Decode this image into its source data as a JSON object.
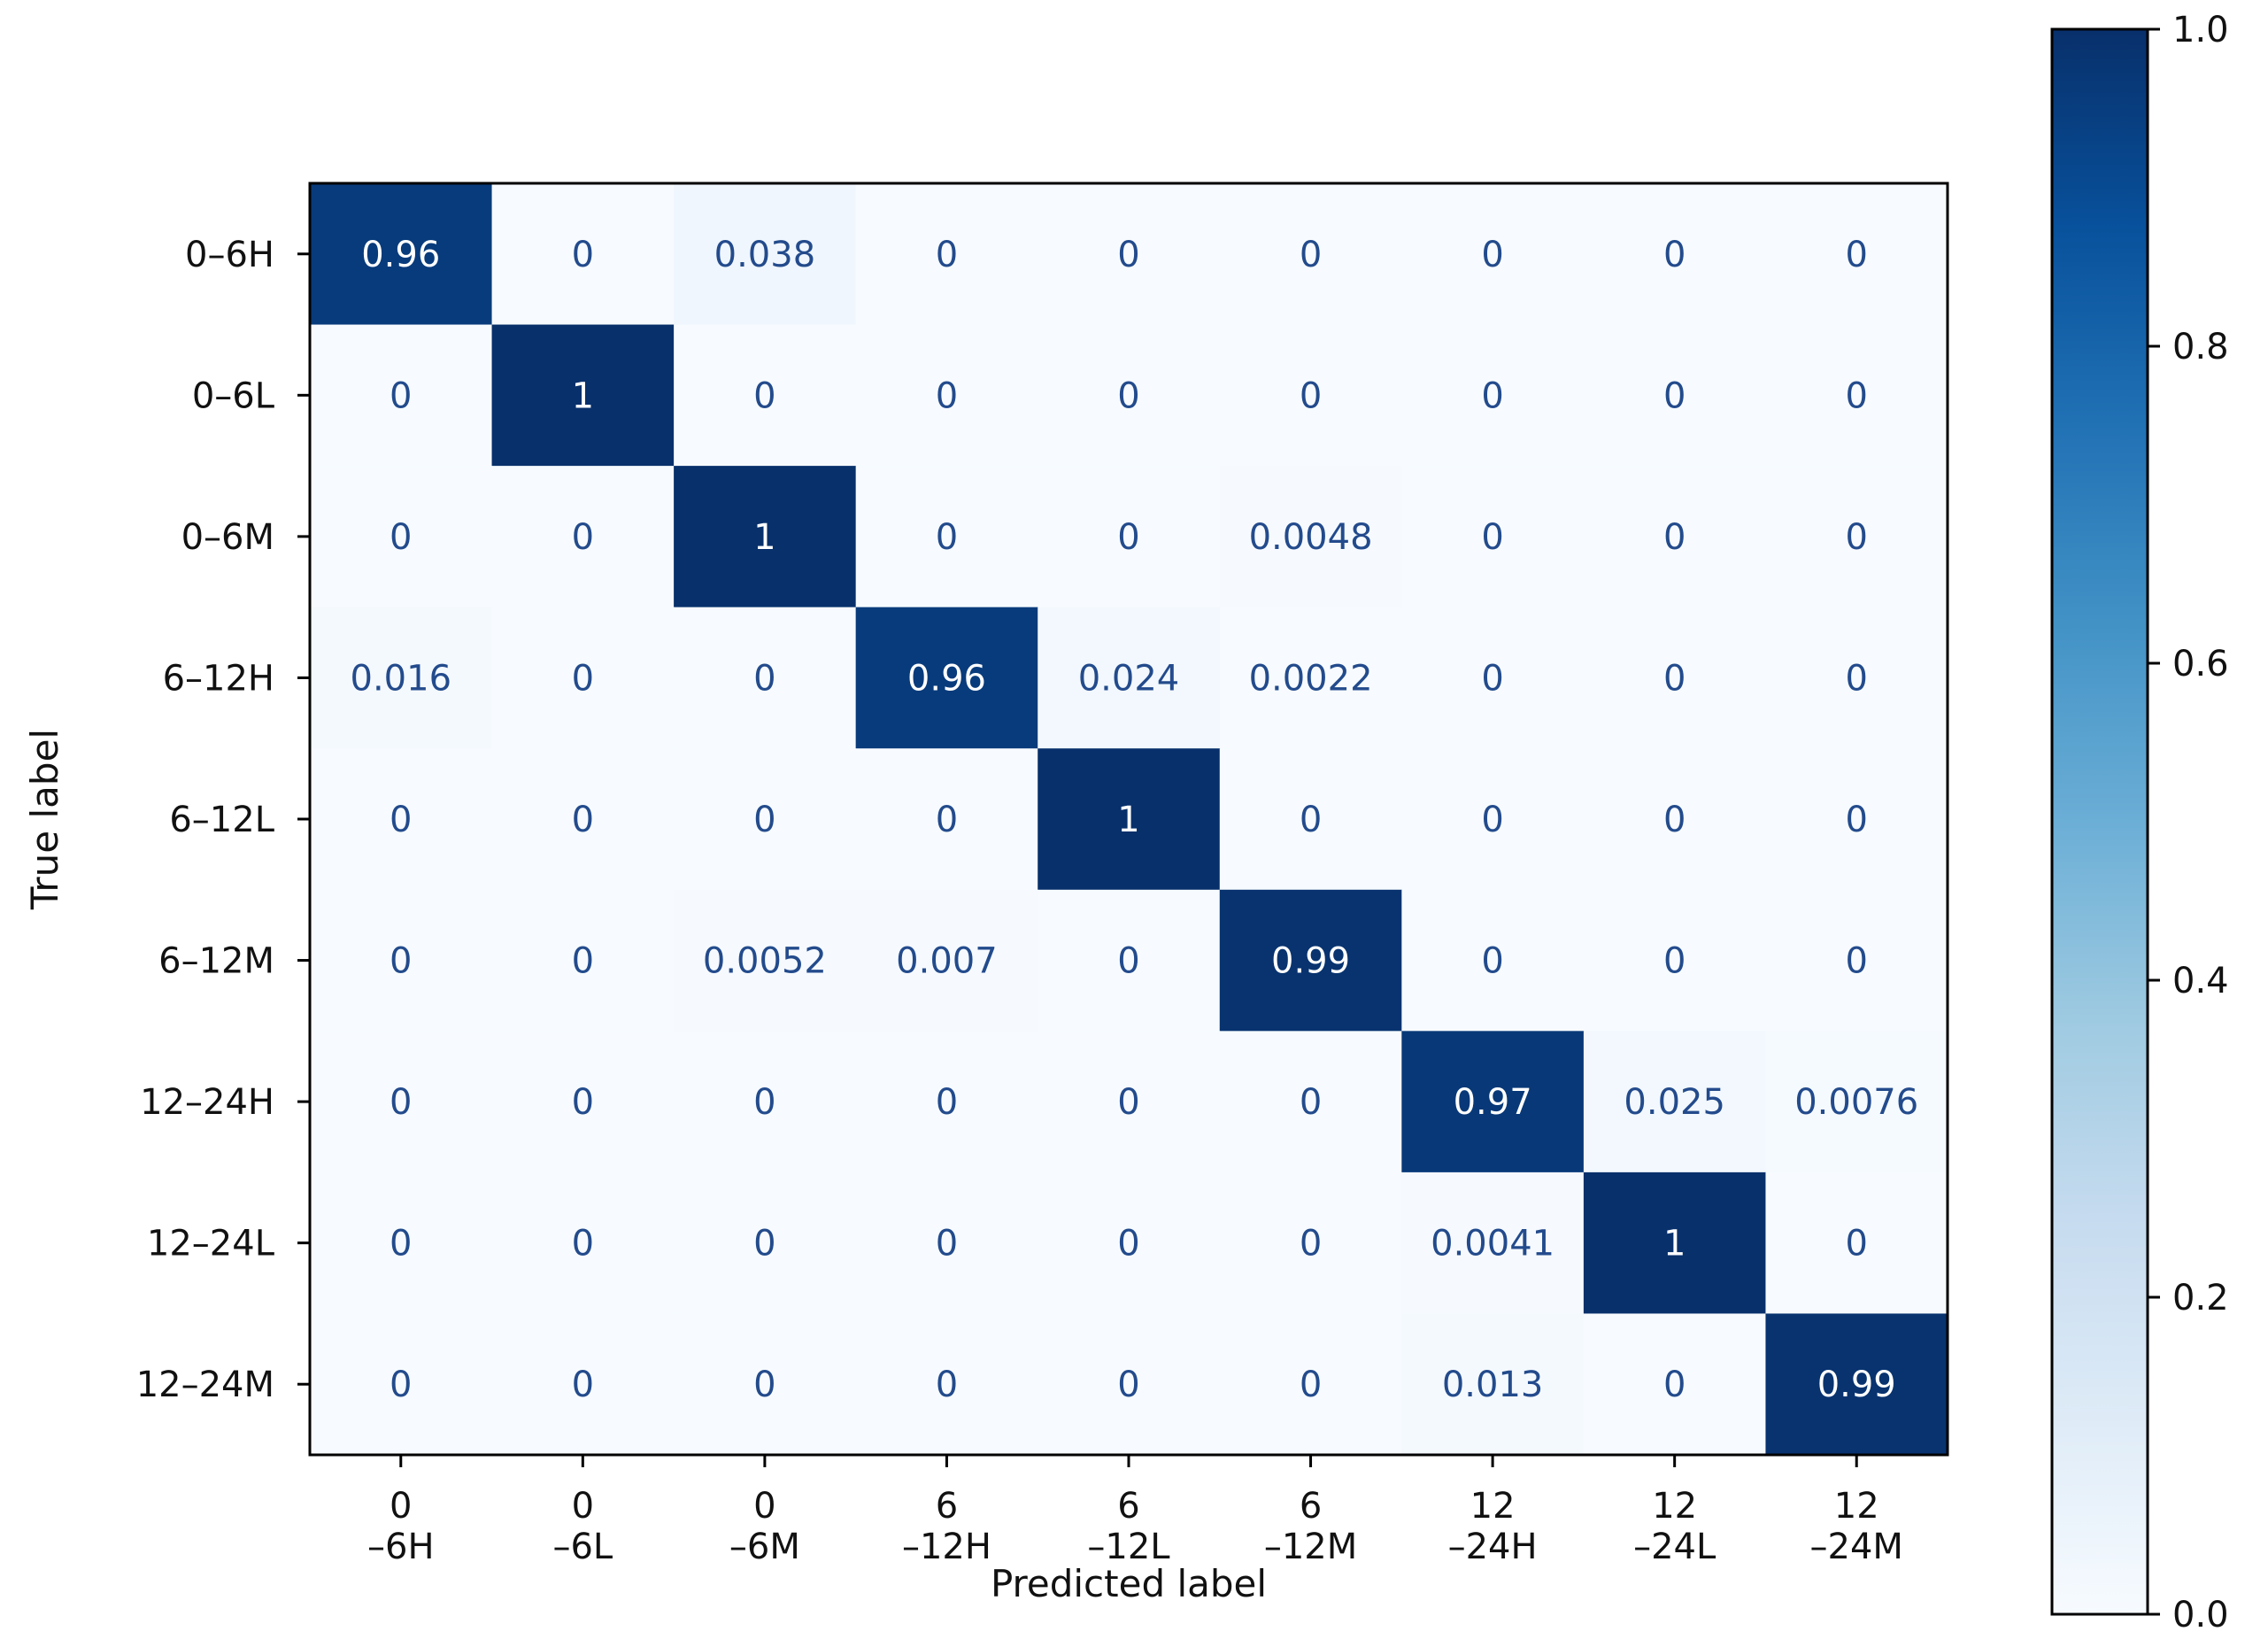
{
  "chart_data": {
    "type": "heatmap",
    "title": "",
    "xlabel": "Predicted label",
    "ylabel": "True label",
    "row_labels": [
      "0–6H",
      "0–6L",
      "0–6M",
      "6–12H",
      "6–12L",
      "6–12M",
      "12–24H",
      "12–24L",
      "12–24M"
    ],
    "col_labels": [
      [
        "0",
        "–6H"
      ],
      [
        "0",
        "–6L"
      ],
      [
        "0",
        "–6M"
      ],
      [
        "6",
        "–12H"
      ],
      [
        "6",
        "–12L"
      ],
      [
        "6",
        "–12M"
      ],
      [
        "12",
        "–24H"
      ],
      [
        "12",
        "–24L"
      ],
      [
        "12",
        "–24M"
      ]
    ],
    "values": [
      [
        0.96,
        0,
        0.038,
        0,
        0,
        0,
        0,
        0,
        0
      ],
      [
        0,
        1,
        0,
        0,
        0,
        0,
        0,
        0,
        0
      ],
      [
        0,
        0,
        1,
        0,
        0,
        0.0048,
        0,
        0,
        0
      ],
      [
        0.016,
        0,
        0,
        0.96,
        0.024,
        0.0022,
        0,
        0,
        0
      ],
      [
        0,
        0,
        0,
        0,
        1,
        0,
        0,
        0,
        0
      ],
      [
        0,
        0,
        0.0052,
        0.007,
        0,
        0.99,
        0,
        0,
        0
      ],
      [
        0,
        0,
        0,
        0,
        0,
        0,
        0.97,
        0.025,
        0.0076
      ],
      [
        0,
        0,
        0,
        0,
        0,
        0,
        0.0041,
        1,
        0
      ],
      [
        0,
        0,
        0,
        0,
        0,
        0,
        0.013,
        0,
        0.99
      ]
    ],
    "cell_labels": [
      [
        "0.96",
        "0",
        "0.038",
        "0",
        "0",
        "0",
        "0",
        "0",
        "0"
      ],
      [
        "0",
        "1",
        "0",
        "0",
        "0",
        "0",
        "0",
        "0",
        "0"
      ],
      [
        "0",
        "0",
        "1",
        "0",
        "0",
        "0.0048",
        "0",
        "0",
        "0"
      ],
      [
        "0.016",
        "0",
        "0",
        "0.96",
        "0.024",
        "0.0022",
        "0",
        "0",
        "0"
      ],
      [
        "0",
        "0",
        "0",
        "0",
        "1",
        "0",
        "0",
        "0",
        "0"
      ],
      [
        "0",
        "0",
        "0.0052",
        "0.007",
        "0",
        "0.99",
        "0",
        "0",
        "0"
      ],
      [
        "0",
        "0",
        "0",
        "0",
        "0",
        "0",
        "0.97",
        "0.025",
        "0.0076"
      ],
      [
        "0",
        "0",
        "0",
        "0",
        "0",
        "0",
        "0.0041",
        "1",
        "0"
      ],
      [
        "0",
        "0",
        "0",
        "0",
        "0",
        "0",
        "0.013",
        "0",
        "0.99"
      ]
    ],
    "colormap": "Blues",
    "colorbar": {
      "range": [
        0.0,
        1.0
      ],
      "ticks": [
        0.0,
        0.2,
        0.4,
        0.6,
        0.8,
        1.0
      ],
      "tick_labels": [
        "0.0",
        "0.2",
        "0.4",
        "0.6",
        "0.8",
        "1.0"
      ]
    },
    "colors": {
      "low": "#f7fbff",
      "high": "#08306b",
      "text_on_light": "#234b8c",
      "text_on_dark": "#ffffff"
    }
  }
}
